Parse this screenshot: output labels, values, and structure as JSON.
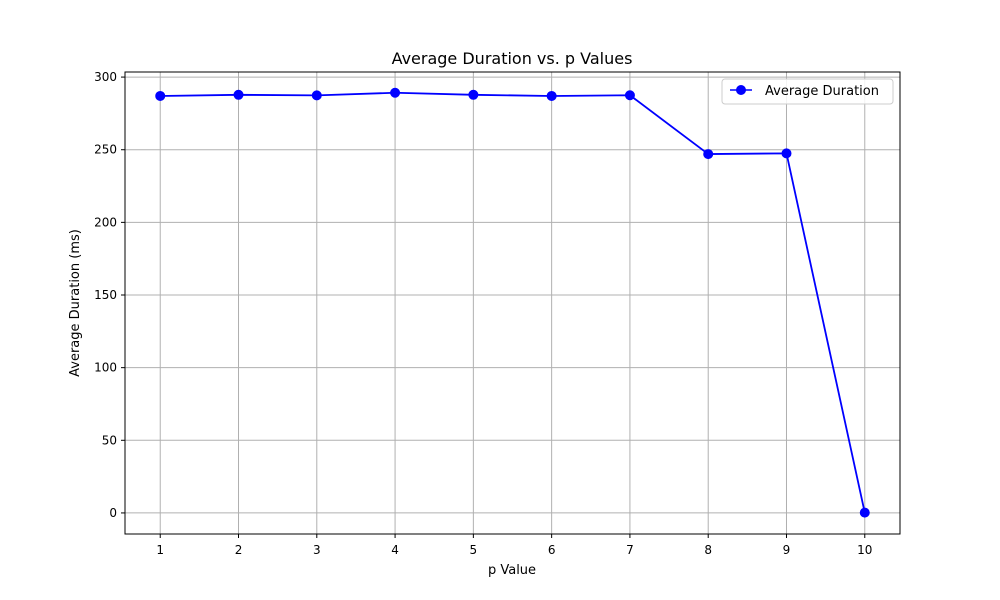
{
  "chart_data": {
    "type": "line",
    "title": "Average Duration vs. p Values",
    "xlabel": "p Value",
    "ylabel": "Average Duration (ms)",
    "x": [
      1,
      2,
      3,
      4,
      5,
      6,
      7,
      8,
      9,
      10
    ],
    "xlim": [
      0.55,
      10.45
    ],
    "ylim": [
      -14.5,
      303.5
    ],
    "x_ticks": [
      1,
      2,
      3,
      4,
      5,
      6,
      7,
      8,
      9,
      10
    ],
    "y_ticks": [
      0,
      50,
      100,
      150,
      200,
      250,
      300
    ],
    "series": [
      {
        "name": "Average Duration",
        "values": [
          287,
          287.8,
          287.4,
          289.2,
          287.8,
          287,
          287.5,
          247,
          247.5,
          0.2
        ],
        "color": "#0000ff",
        "marker": "circle"
      }
    ],
    "grid": true,
    "legend_position": "top-right",
    "colors": {
      "grid": "#b0b0b0",
      "axis": "#000000",
      "background": "#ffffff"
    }
  }
}
